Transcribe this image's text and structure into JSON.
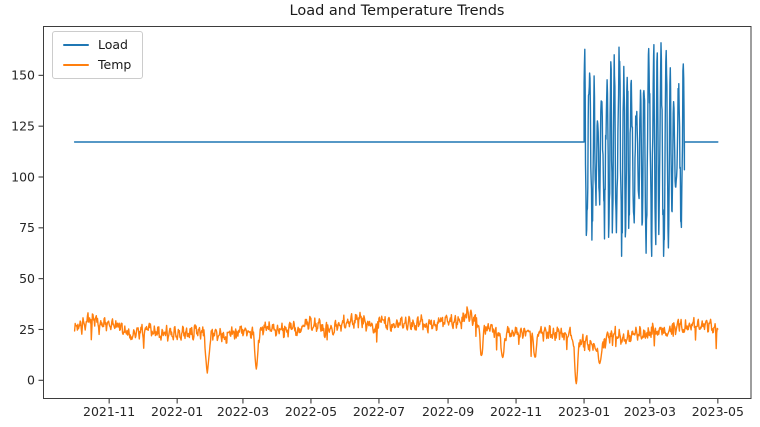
{
  "figure": {
    "title": "Load and Temperature Trends",
    "background_color": "#ffffff"
  },
  "legend": {
    "position": "upper-left",
    "items": [
      {
        "label": "Load",
        "color": "#1f77b4"
      },
      {
        "label": "Temp",
        "color": "#ff7f0e"
      }
    ]
  },
  "chart_data": {
    "type": "line",
    "title": "Load and Temperature Trends",
    "xlabel": "",
    "ylabel": "",
    "grid": false,
    "legend_position": "upper-left",
    "x_range": [
      "2021-10-01",
      "2023-05-01"
    ],
    "ylim": [
      -9,
      174
    ],
    "y_ticks": [
      0,
      25,
      50,
      75,
      100,
      125,
      150
    ],
    "x_ticks": [
      "2021-11",
      "2022-01",
      "2022-03",
      "2022-05",
      "2022-07",
      "2022-09",
      "2022-11",
      "2023-01",
      "2023-03",
      "2023-05"
    ],
    "series": [
      {
        "name": "Load",
        "color": "#1f77b4",
        "pattern": "constant-with-anomaly",
        "baseline_value": 117.2,
        "anomaly": {
          "start": "2023-01-01",
          "end": "2023-04-01",
          "min": 61,
          "max": 166,
          "description": "dense high-variance oscillation between ~60 and ~166, then returns to baseline 117 until 2023-05"
        }
      },
      {
        "name": "Temp",
        "color": "#ff7f0e",
        "pattern": "seasonal-noisy",
        "noise_band_halfwidth": 6,
        "monthly_means": [
          [
            "2021-10",
            27.0
          ],
          [
            "2021-11",
            24.5
          ],
          [
            "2021-12",
            22.5
          ],
          [
            "2022-01",
            21.5
          ],
          [
            "2022-02",
            21.0
          ],
          [
            "2022-03",
            23.5
          ],
          [
            "2022-04",
            26.0
          ],
          [
            "2022-05",
            28.5
          ],
          [
            "2022-06",
            29.5
          ],
          [
            "2022-07",
            30.0
          ],
          [
            "2022-08",
            30.0
          ],
          [
            "2022-09",
            28.5
          ],
          [
            "2022-10",
            26.0
          ],
          [
            "2022-11",
            23.5
          ],
          [
            "2022-12",
            21.5
          ],
          [
            "2023-01",
            19.5
          ],
          [
            "2023-02",
            23.0
          ],
          [
            "2023-03",
            25.5
          ],
          [
            "2023-04",
            26.0
          ],
          [
            "2023-05",
            25.0
          ]
        ],
        "cold_dips": [
          [
            "2022-01-28",
            4.0
          ],
          [
            "2022-03-13",
            6.0
          ],
          [
            "2022-10-01",
            12.0
          ],
          [
            "2022-10-20",
            11.0
          ],
          [
            "2022-11-18",
            11.0
          ],
          [
            "2022-12-25",
            -1.5
          ],
          [
            "2023-01-15",
            8.0
          ]
        ]
      }
    ]
  }
}
